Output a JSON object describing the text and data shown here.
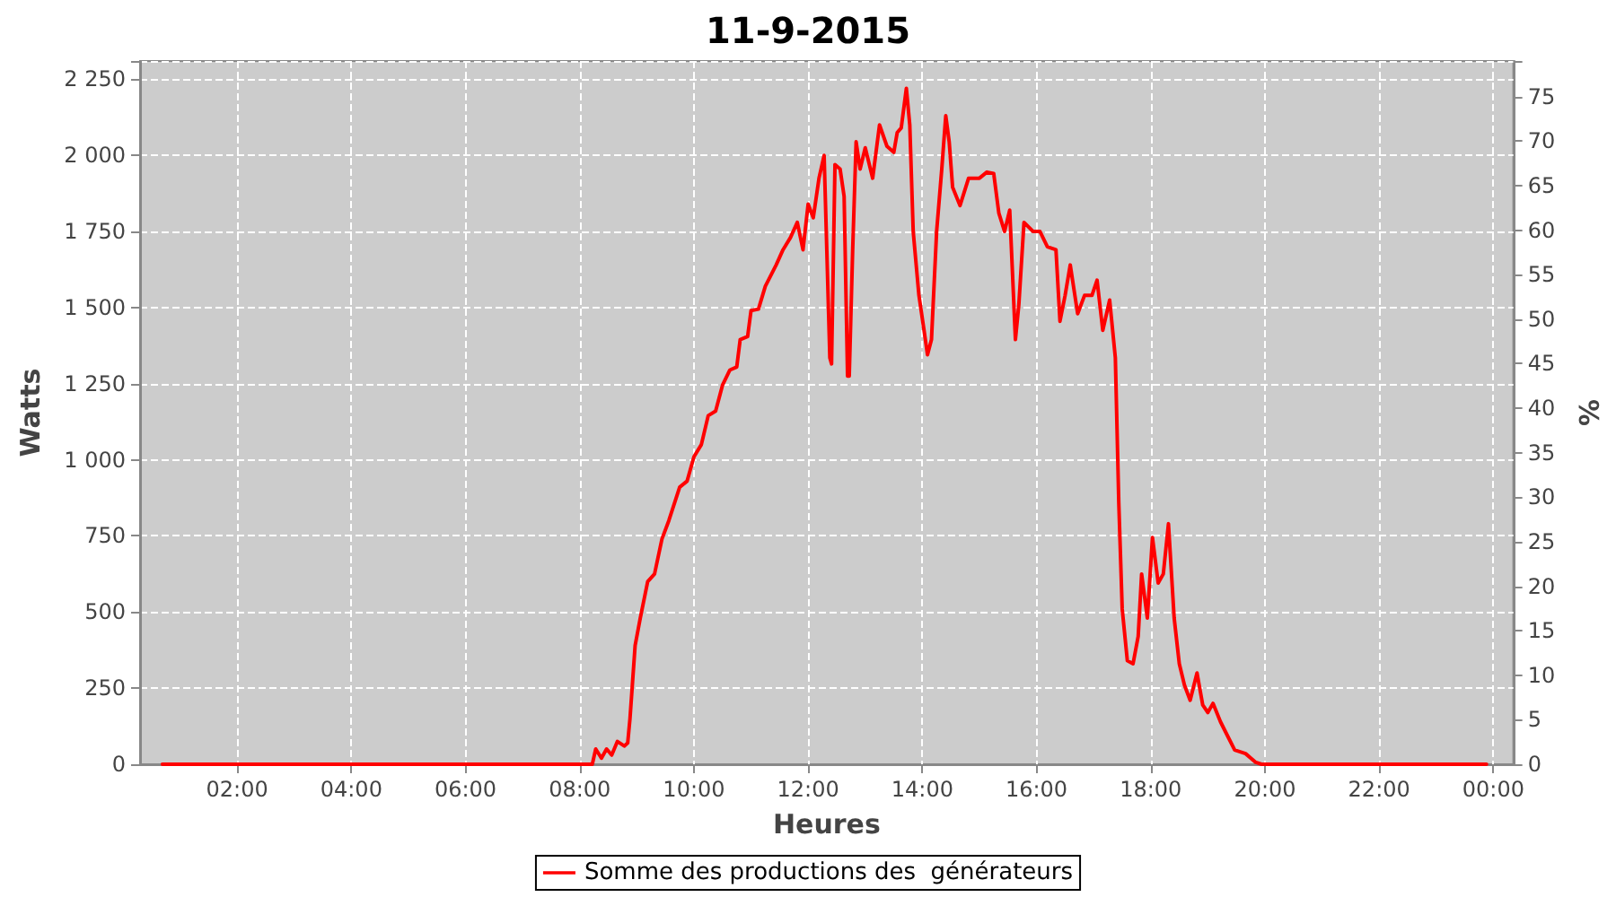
{
  "chart_data": {
    "type": "line",
    "title": "11-9-2015",
    "xlabel": "Heures",
    "ylabel": "Watts",
    "y2label": "%",
    "xlim": [
      0.3,
      24.35
    ],
    "xticks": [
      {
        "value": 2,
        "label": "02:00"
      },
      {
        "value": 4,
        "label": "04:00"
      },
      {
        "value": 6,
        "label": "06:00"
      },
      {
        "value": 8,
        "label": "08:00"
      },
      {
        "value": 10,
        "label": "10:00"
      },
      {
        "value": 12,
        "label": "12:00"
      },
      {
        "value": 14,
        "label": "14:00"
      },
      {
        "value": 16,
        "label": "16:00"
      },
      {
        "value": 18,
        "label": "18:00"
      },
      {
        "value": 20,
        "label": "20:00"
      },
      {
        "value": 22,
        "label": "22:00"
      },
      {
        "value": 24,
        "label": "00:00"
      }
    ],
    "ylim": [
      0,
      2310
    ],
    "yticks": [
      0,
      250,
      500,
      750,
      {
        "value": 1000,
        "label": "1 000"
      },
      {
        "value": 1250,
        "label": "1 250"
      },
      {
        "value": 1500,
        "label": "1 500"
      },
      {
        "value": 1750,
        "label": "1 750"
      },
      {
        "value": 2000,
        "label": "2 000"
      },
      {
        "value": 2250,
        "label": "2 250"
      }
    ],
    "y2lim": [
      0,
      79
    ],
    "y2ticks": [
      0,
      5,
      10,
      15,
      20,
      25,
      30,
      35,
      40,
      45,
      50,
      55,
      60,
      65,
      70,
      75
    ],
    "grid": true,
    "legend": "bottom",
    "marker": "none",
    "line_style": "solid",
    "series": [
      {
        "name": "Somme des productions des  générateurs",
        "color": "#ff0000",
        "x": [
          0.69,
          8.22,
          8.28,
          8.38,
          8.47,
          8.56,
          8.66,
          8.78,
          8.84,
          8.88,
          8.97,
          9.06,
          9.19,
          9.31,
          9.44,
          9.56,
          9.75,
          9.88,
          10.0,
          10.13,
          10.25,
          10.38,
          10.5,
          10.63,
          10.75,
          10.81,
          10.94,
          11.0,
          11.13,
          11.25,
          11.44,
          11.56,
          11.69,
          11.81,
          11.91,
          12.0,
          12.09,
          12.19,
          12.28,
          12.38,
          12.41,
          12.47,
          12.56,
          12.63,
          12.69,
          12.72,
          12.78,
          12.84,
          12.91,
          13.0,
          13.13,
          13.25,
          13.38,
          13.5,
          13.56,
          13.63,
          13.72,
          13.78,
          13.84,
          13.94,
          14.03,
          14.09,
          14.16,
          14.25,
          14.34,
          14.41,
          14.47,
          14.53,
          14.66,
          14.81,
          15.0,
          15.13,
          15.25,
          15.34,
          15.44,
          15.53,
          15.63,
          15.69,
          15.78,
          15.94,
          16.06,
          16.19,
          16.34,
          16.41,
          16.5,
          16.59,
          16.72,
          16.84,
          16.97,
          17.06,
          17.16,
          17.28,
          17.38,
          17.44,
          17.5,
          17.59,
          17.69,
          17.78,
          17.84,
          17.94,
          18.03,
          18.13,
          18.22,
          18.31,
          18.41,
          18.5,
          18.59,
          18.69,
          18.81,
          18.91,
          19.0,
          19.09,
          19.22,
          19.34,
          19.47,
          19.66,
          19.84,
          19.94,
          23.88
        ],
        "values": [
          0,
          0,
          50,
          20,
          50,
          30,
          75,
          60,
          70,
          150,
          390,
          480,
          600,
          625,
          740,
          800,
          910,
          930,
          1010,
          1050,
          1145,
          1160,
          1245,
          1295,
          1305,
          1395,
          1405,
          1490,
          1495,
          1570,
          1640,
          1690,
          1730,
          1780,
          1690,
          1840,
          1795,
          1925,
          2000,
          1335,
          1315,
          1970,
          1955,
          1865,
          1275,
          1275,
          1690,
          2045,
          1955,
          2025,
          1925,
          2100,
          2030,
          2010,
          2075,
          2090,
          2220,
          2100,
          1750,
          1540,
          1425,
          1345,
          1395,
          1750,
          1955,
          2130,
          2045,
          1895,
          1835,
          1925,
          1925,
          1945,
          1940,
          1810,
          1750,
          1820,
          1395,
          1510,
          1780,
          1750,
          1750,
          1700,
          1690,
          1455,
          1540,
          1640,
          1480,
          1540,
          1540,
          1590,
          1425,
          1525,
          1335,
          860,
          510,
          340,
          330,
          420,
          625,
          480,
          745,
          595,
          625,
          790,
          480,
          330,
          260,
          210,
          300,
          195,
          170,
          200,
          140,
          95,
          47,
          35,
          6,
          0,
          0
        ]
      }
    ]
  }
}
